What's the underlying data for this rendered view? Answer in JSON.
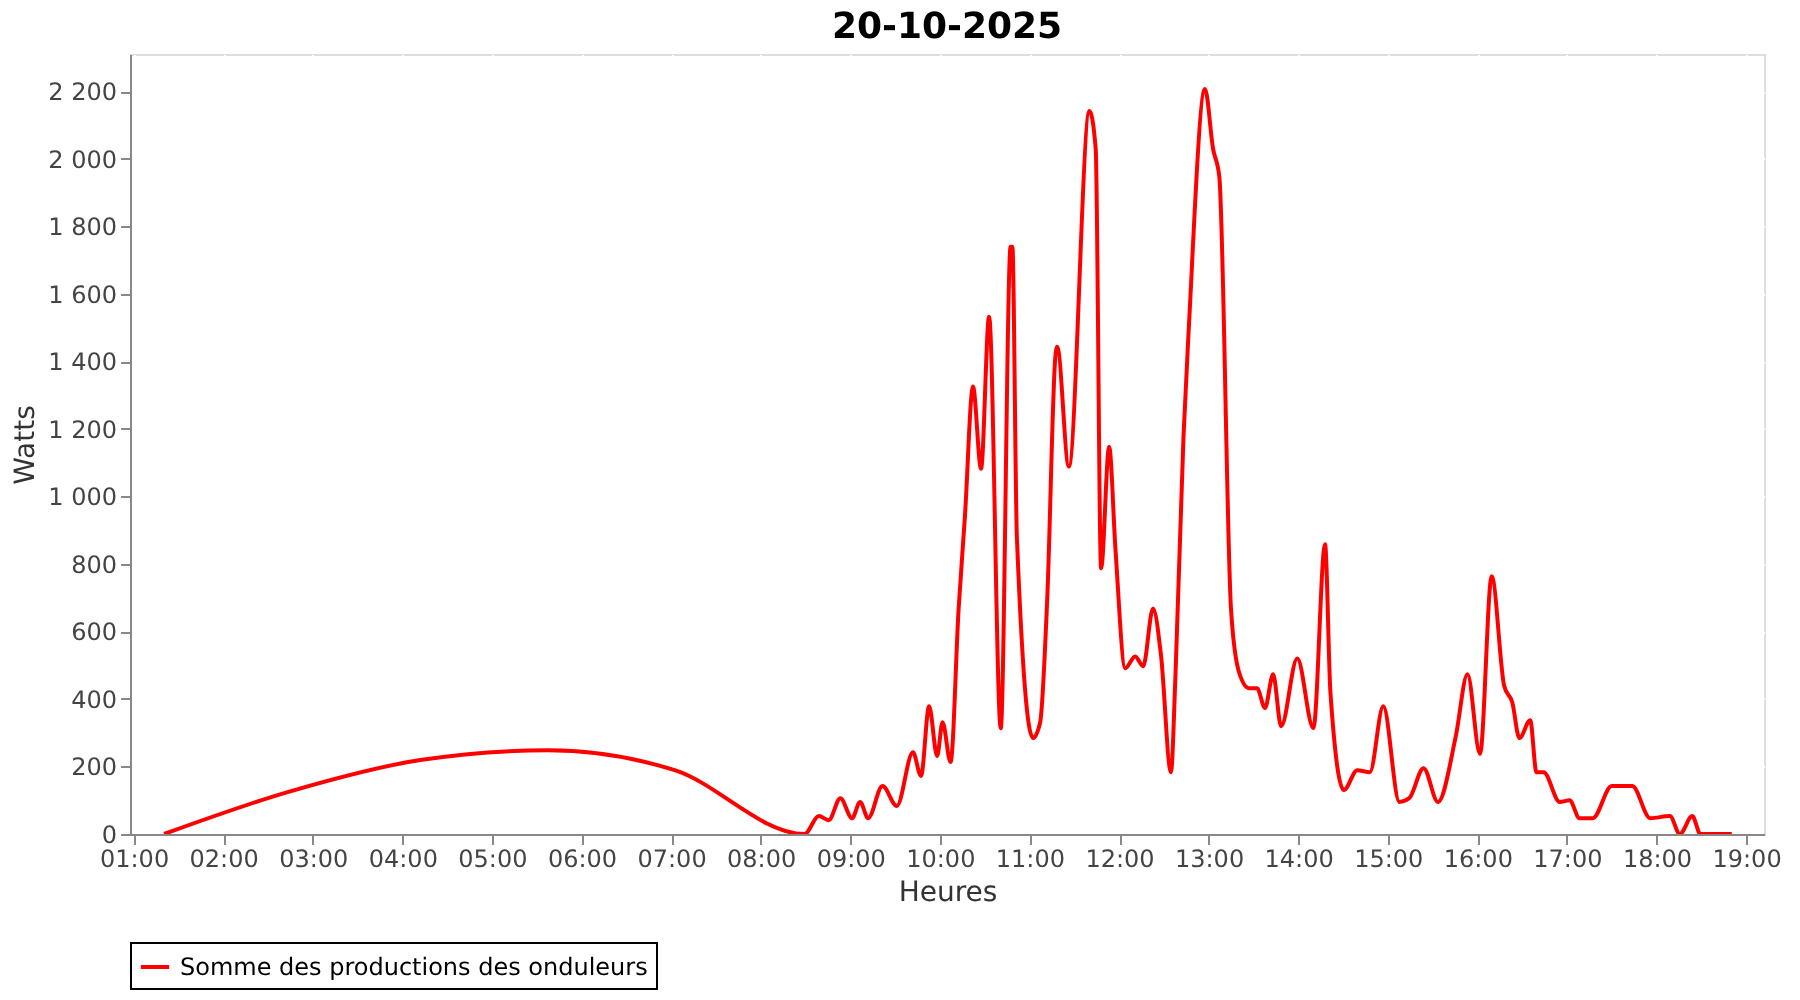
{
  "chart_data": {
    "type": "line",
    "title": "20-10-2025",
    "xlabel": "Heures",
    "ylabel": "Watts",
    "xlim": [
      0.96,
      19.2
    ],
    "ylim": [
      0,
      2310
    ],
    "xticks": [
      {
        "value": 1,
        "label": "01:00"
      },
      {
        "value": 2,
        "label": "02:00"
      },
      {
        "value": 3,
        "label": "03:00"
      },
      {
        "value": 4,
        "label": "04:00"
      },
      {
        "value": 5,
        "label": "05:00"
      },
      {
        "value": 6,
        "label": "06:00"
      },
      {
        "value": 7,
        "label": "07:00"
      },
      {
        "value": 8,
        "label": "08:00"
      },
      {
        "value": 9,
        "label": "09:00"
      },
      {
        "value": 10,
        "label": "10:00"
      },
      {
        "value": 11,
        "label": "11:00"
      },
      {
        "value": 12,
        "label": "12:00"
      },
      {
        "value": 13,
        "label": "13:00"
      },
      {
        "value": 14,
        "label": "14:00"
      },
      {
        "value": 15,
        "label": "15:00"
      },
      {
        "value": 16,
        "label": "16:00"
      },
      {
        "value": 17,
        "label": "17:00"
      },
      {
        "value": 18,
        "label": "18:00"
      },
      {
        "value": 19,
        "label": "19:00"
      }
    ],
    "yticks": [
      0,
      200,
      400,
      600,
      800,
      {
        "value": 1000,
        "label": "1 000"
      },
      {
        "value": 1200,
        "label": "1 200"
      },
      {
        "value": 1400,
        "label": "1 400"
      },
      {
        "value": 1600,
        "label": "1 600"
      },
      {
        "value": 1800,
        "label": "1 800"
      },
      {
        "value": 2000,
        "label": "2 000"
      },
      {
        "value": 2200,
        "label": "2 200"
      }
    ],
    "grid": true,
    "legend": "bottom",
    "marker": "none",
    "line_style": "solid",
    "series": [
      {
        "name": "Somme des productions des onduleurs",
        "color": "#ff0000",
        "x": [
          1.34,
          2.72,
          4.2,
          5.63,
          7.04,
          8.49,
          8.65,
          8.76,
          8.89,
          9.02,
          9.11,
          9.2,
          9.36,
          9.52,
          9.7,
          9.79,
          9.88,
          9.97,
          10.03,
          10.12,
          10.21,
          10.28,
          10.37,
          10.46,
          10.55,
          10.68,
          10.79,
          10.81,
          10.86,
          11.04,
          11.12,
          11.2,
          11.29,
          11.31,
          11.44,
          11.67,
          11.74,
          11.8,
          11.89,
          11.96,
          12.07,
          12.18,
          12.27,
          12.38,
          12.47,
          12.58,
          12.63,
          12.72,
          12.78,
          12.96,
          13.05,
          13.12,
          13.25,
          13.34,
          13.45,
          13.54,
          13.63,
          13.72,
          13.81,
          13.99,
          14.17,
          14.3,
          14.36,
          14.51,
          14.66,
          14.8,
          14.95,
          15.13,
          15.24,
          15.4,
          15.56,
          15.76,
          15.89,
          16.03,
          16.16,
          16.3,
          16.39,
          16.47,
          16.59,
          16.66,
          16.74,
          16.92,
          17.03,
          17.14,
          17.29,
          17.5,
          17.73,
          17.93,
          18.15,
          18.26,
          18.4,
          18.49,
          18.84
        ],
        "values": [
          0,
          124,
          219,
          248,
          189,
          0,
          53,
          41,
          106,
          47,
          95,
          47,
          142,
          83,
          242,
          172,
          378,
          231,
          331,
          213,
          668,
          940,
          1325,
          1082,
          1532,
          313,
          1739,
          1739,
          880,
          284,
          331,
          704,
          1414,
          1443,
          1088,
          2141,
          2029,
          787,
          1147,
          846,
          491,
          526,
          497,
          668,
          526,
          183,
          467,
          1177,
          1502,
          2206,
          2029,
          1946,
          668,
          479,
          432,
          432,
          373,
          473,
          319,
          520,
          313,
          858,
          420,
          130,
          189,
          183,
          378,
          95,
          106,
          195,
          95,
          290,
          473,
          237,
          763,
          438,
          390,
          284,
          337,
          183,
          183,
          95,
          100,
          47,
          47,
          142,
          142,
          47,
          53,
          0,
          53,
          0,
          0
        ]
      }
    ]
  }
}
